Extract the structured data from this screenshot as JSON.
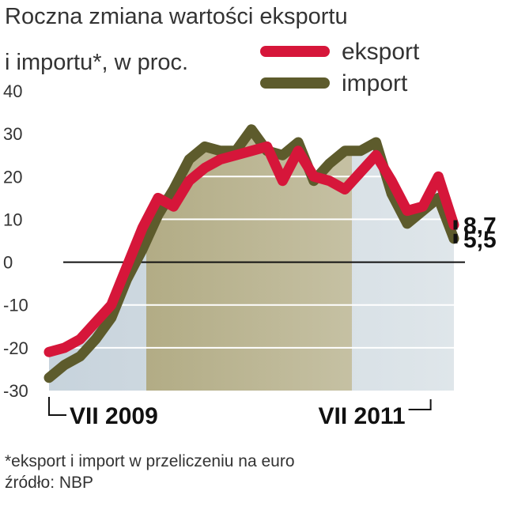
{
  "chart_data": {
    "type": "line",
    "title": "Roczna zmiana wartości eksportu",
    "subtitle": "i importu*, w proc.",
    "footnote": "*eksport i import w przeliczeniu na euro",
    "source": "źródło: NBP",
    "categories": [
      "VII 2009",
      null,
      null,
      null,
      null,
      null,
      null,
      null,
      null,
      null,
      null,
      null,
      null,
      null,
      null,
      null,
      null,
      null,
      null,
      null,
      null,
      null,
      null,
      null,
      "VII 2011",
      null,
      null
    ],
    "series": [
      {
        "name": "import",
        "color": "#5d5b2c",
        "values": [
          -27,
          -24,
          -22,
          -18,
          -13,
          -4,
          3,
          11,
          17,
          24,
          27,
          26,
          26,
          31,
          26,
          25,
          28,
          19,
          23,
          26,
          26,
          28,
          16,
          9,
          12,
          15,
          5.5
        ],
        "value_labels": [
          null,
          null,
          null,
          null,
          null,
          null,
          null,
          null,
          null,
          null,
          null,
          null,
          null,
          null,
          null,
          null,
          null,
          null,
          null,
          null,
          null,
          null,
          null,
          null,
          null,
          null,
          "5,5"
        ]
      },
      {
        "name": "eksport",
        "color": "#d6163a",
        "values": [
          -21,
          -20,
          -18,
          -14,
          -10,
          -1,
          8,
          15,
          13,
          19,
          22,
          24,
          25,
          26,
          27,
          19,
          26,
          20,
          19,
          17,
          21,
          25,
          19,
          12,
          13,
          20,
          8.7
        ],
        "value_labels": [
          null,
          null,
          null,
          null,
          null,
          null,
          null,
          null,
          null,
          null,
          null,
          null,
          null,
          null,
          null,
          null,
          null,
          null,
          null,
          null,
          null,
          null,
          null,
          null,
          null,
          null,
          "8,7"
        ]
      }
    ],
    "ylim": [
      -30,
      40
    ],
    "yticks": [
      -30,
      -20,
      -10,
      0,
      10,
      20,
      30,
      40
    ],
    "grid": true
  }
}
